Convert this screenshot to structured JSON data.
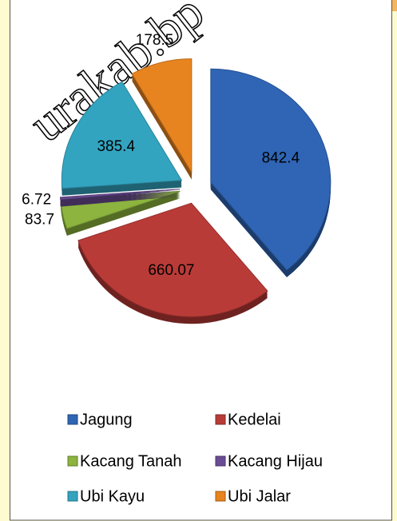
{
  "watermark": "urakab.bp",
  "chart_data": {
    "type": "pie",
    "categories": [
      "Jagung",
      "Kedelai",
      "Kacang Tanah",
      "Kacang Hijau",
      "Ubi Kayu",
      "Ubi Jalar"
    ],
    "values": [
      842.4,
      660.07,
      83.7,
      6.72,
      385.4,
      178.5
    ],
    "colors": [
      "#2f65b4",
      "#b93b37",
      "#8cb43e",
      "#6a4c95",
      "#33a4c0",
      "#e8841f"
    ],
    "legend": "bottom"
  }
}
